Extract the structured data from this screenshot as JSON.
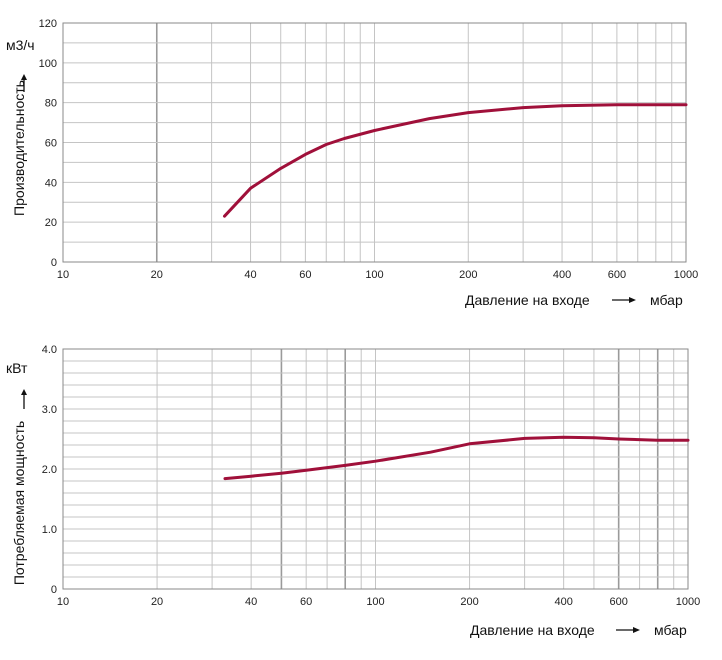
{
  "chart_data": [
    {
      "type": "line",
      "xscale": "log",
      "xlim": [
        10,
        1000
      ],
      "ylim": [
        0,
        120
      ],
      "xticks": [
        10,
        20,
        40,
        60,
        100,
        200,
        400,
        600,
        1000
      ],
      "xtick_labels": [
        "10",
        "20",
        "40",
        "60",
        "100",
        "200",
        "400",
        "600",
        "1000"
      ],
      "yticks": [
        0,
        20,
        40,
        60,
        80,
        100,
        120
      ],
      "ytick_labels": [
        "0",
        "20",
        "40",
        "60",
        "80",
        "100",
        "120"
      ],
      "xlabel": "Давление на входе",
      "xunit": "мбар",
      "ylabel": "Производительность",
      "yunit": "м3/ч",
      "grid": true,
      "line_color": "#a0103a",
      "series": [
        {
          "x": [
            33,
            40,
            50,
            60,
            70,
            80,
            100,
            150,
            200,
            300,
            400,
            600,
            800,
            1000
          ],
          "y": [
            23,
            37,
            47,
            54,
            59,
            62,
            66,
            72,
            75,
            77.5,
            78.5,
            79,
            79,
            79
          ]
        }
      ]
    },
    {
      "type": "line",
      "xscale": "log",
      "xlim": [
        10,
        1000
      ],
      "ylim": [
        0,
        4
      ],
      "xticks": [
        10,
        20,
        40,
        60,
        100,
        200,
        400,
        600,
        1000
      ],
      "xtick_labels": [
        "10",
        "20",
        "40",
        "60",
        "100",
        "200",
        "400",
        "600",
        "1000"
      ],
      "yticks": [
        0,
        1,
        2,
        3,
        4
      ],
      "ytick_labels": [
        "0",
        "1.0",
        "2.0",
        "3.0",
        "4.0"
      ],
      "xlabel": "Давление на входе",
      "xunit": "мбар",
      "ylabel": "Потребляемая мощность",
      "yunit": "кВт",
      "grid": true,
      "line_color": "#a0103a",
      "series": [
        {
          "x": [
            33,
            40,
            50,
            60,
            80,
            100,
            150,
            200,
            300,
            400,
            500,
            600,
            800,
            1000
          ],
          "y": [
            1.84,
            1.88,
            1.93,
            1.98,
            2.06,
            2.13,
            2.28,
            2.42,
            2.51,
            2.53,
            2.52,
            2.5,
            2.48,
            2.48
          ]
        }
      ]
    }
  ]
}
